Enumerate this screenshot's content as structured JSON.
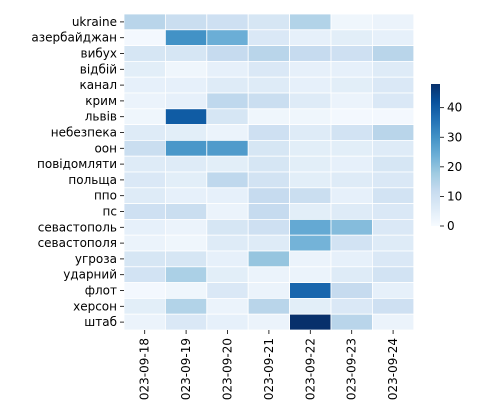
{
  "chart_data": {
    "type": "heatmap",
    "title": "",
    "xlabel": "",
    "ylabel": "",
    "x": [
      "2023-09-18",
      "2023-09-19",
      "2023-09-20",
      "2023-09-21",
      "2023-09-22",
      "2023-09-23",
      "2023-09-24"
    ],
    "y": [
      "ukraine",
      "азербайджан",
      "вибух",
      "відбій",
      "канал",
      "крим",
      "львів",
      "небезпека",
      "оон",
      "повідомляти",
      "польща",
      "ппо",
      "пс",
      "севастополь",
      "севастополя",
      "угроза",
      "ударний",
      "флот",
      "херсон",
      "штаб"
    ],
    "values": [
      [
        14,
        11,
        10,
        8,
        15,
        2,
        3
      ],
      [
        1,
        30,
        24,
        7,
        4,
        5,
        4
      ],
      [
        8,
        8,
        12,
        14,
        12,
        10,
        14
      ],
      [
        5,
        2,
        4,
        7,
        4,
        4,
        6
      ],
      [
        4,
        4,
        6,
        6,
        4,
        5,
        7
      ],
      [
        3,
        4,
        13,
        11,
        6,
        3,
        7
      ],
      [
        2,
        40,
        8,
        2,
        2,
        1,
        1
      ],
      [
        6,
        5,
        3,
        10,
        6,
        9,
        14
      ],
      [
        11,
        29,
        28,
        8,
        5,
        5,
        6
      ],
      [
        6,
        6,
        5,
        8,
        5,
        4,
        8
      ],
      [
        7,
        5,
        13,
        9,
        5,
        6,
        7
      ],
      [
        6,
        4,
        4,
        12,
        11,
        4,
        9
      ],
      [
        10,
        11,
        3,
        12,
        5,
        6,
        7
      ],
      [
        4,
        3,
        8,
        10,
        25,
        21,
        7
      ],
      [
        3,
        2,
        6,
        6,
        23,
        9,
        6
      ],
      [
        8,
        8,
        4,
        19,
        3,
        4,
        7
      ],
      [
        9,
        16,
        5,
        3,
        3,
        6,
        9
      ],
      [
        1,
        2,
        7,
        3,
        38,
        12,
        4
      ],
      [
        5,
        15,
        3,
        14,
        5,
        7,
        10
      ],
      [
        3,
        7,
        4,
        3,
        48,
        14,
        3
      ]
    ],
    "colorbar": {
      "min": 0,
      "max": 48,
      "ticks": [
        0,
        10,
        20,
        30,
        40
      ],
      "colormap": "Blues"
    },
    "grid": false,
    "legend": "colorbar-right"
  }
}
